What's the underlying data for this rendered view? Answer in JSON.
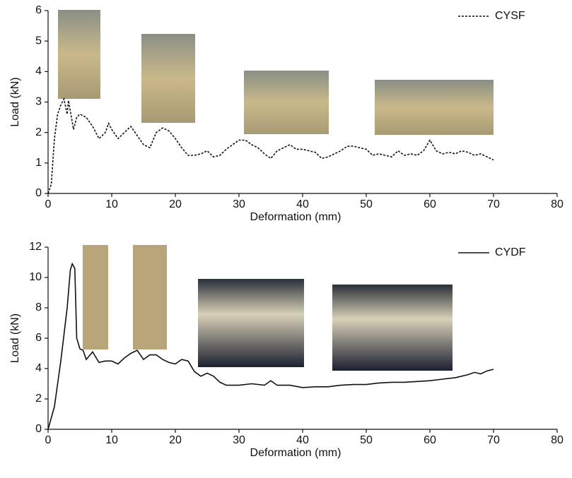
{
  "chart_data": [
    {
      "type": "line",
      "xlabel": "Deformation (mm)",
      "ylabel": "Load (kN)",
      "xlim": [
        0,
        80
      ],
      "ylim": [
        0,
        6
      ],
      "xticks": [
        0,
        10,
        20,
        30,
        40,
        50,
        60,
        70,
        80
      ],
      "yticks": [
        0,
        1,
        2,
        3,
        4,
        5,
        6
      ],
      "legend": "upper right",
      "x": [
        0,
        0.5,
        1,
        1.5,
        2,
        2.5,
        3,
        3.2,
        4,
        4.5,
        5,
        6,
        7,
        8,
        9,
        9.5,
        10,
        11,
        12,
        13,
        14,
        15,
        16,
        17,
        18,
        19,
        20,
        21,
        22,
        23,
        24,
        25,
        26,
        27,
        28,
        29,
        30,
        31,
        32,
        33,
        34,
        35,
        36,
        37,
        38,
        39,
        40,
        41,
        42,
        43,
        44,
        45,
        46,
        47,
        48,
        49,
        50,
        51,
        52,
        53,
        54,
        55,
        56,
        57,
        58,
        59,
        60,
        61,
        62,
        63,
        64,
        65,
        66,
        67,
        68,
        69,
        70
      ],
      "series": [
        {
          "name": "CYSF",
          "color": "#111111",
          "linestyle": "dashed",
          "values": [
            0,
            0.3,
            1.8,
            2.6,
            2.9,
            3.1,
            2.6,
            3.05,
            2.1,
            2.5,
            2.6,
            2.5,
            2.2,
            1.8,
            2.0,
            2.3,
            2.1,
            1.8,
            2.0,
            2.2,
            1.9,
            1.6,
            1.5,
            2.0,
            2.15,
            2.05,
            1.8,
            1.5,
            1.25,
            1.25,
            1.3,
            1.4,
            1.2,
            1.25,
            1.45,
            1.6,
            1.75,
            1.75,
            1.6,
            1.5,
            1.3,
            1.15,
            1.4,
            1.5,
            1.6,
            1.45,
            1.45,
            1.4,
            1.35,
            1.15,
            1.2,
            1.3,
            1.4,
            1.55,
            1.55,
            1.5,
            1.45,
            1.25,
            1.3,
            1.25,
            1.2,
            1.4,
            1.25,
            1.3,
            1.25,
            1.4,
            1.75,
            1.4,
            1.3,
            1.35,
            1.3,
            1.4,
            1.35,
            1.25,
            1.3,
            1.2,
            1.1
          ]
        }
      ]
    },
    {
      "type": "line",
      "xlabel": "Deformation (mm)",
      "ylabel": "Load (kN)",
      "xlim": [
        0,
        80
      ],
      "ylim": [
        0,
        12
      ],
      "xticks": [
        0,
        10,
        20,
        30,
        40,
        50,
        60,
        70,
        80
      ],
      "yticks": [
        0,
        2,
        4,
        6,
        8,
        10,
        12
      ],
      "legend": "upper right",
      "x": [
        0,
        1,
        2,
        3,
        3.5,
        3.8,
        4.2,
        4.5,
        5,
        5.5,
        6,
        7,
        8,
        9,
        10,
        11,
        12,
        13,
        14,
        15,
        16,
        17,
        18,
        19,
        20,
        21,
        22,
        23,
        24,
        25,
        26,
        27,
        28,
        30,
        32,
        34,
        35,
        36,
        38,
        40,
        42,
        44,
        46,
        48,
        50,
        52,
        54,
        56,
        58,
        60,
        62,
        64,
        66,
        67,
        68,
        69,
        70
      ],
      "series": [
        {
          "name": "CYDF",
          "color": "#111111",
          "linestyle": "solid",
          "values": [
            0,
            1.5,
            4.5,
            8,
            10.5,
            10.9,
            10.6,
            6,
            5.3,
            5.2,
            4.6,
            5.1,
            4.4,
            4.5,
            4.5,
            4.3,
            4.7,
            5.0,
            5.2,
            4.6,
            4.9,
            4.9,
            4.6,
            4.4,
            4.3,
            4.6,
            4.5,
            3.8,
            3.5,
            3.7,
            3.5,
            3.1,
            2.9,
            2.9,
            3.0,
            2.9,
            3.2,
            2.9,
            2.9,
            2.75,
            2.8,
            2.8,
            2.9,
            2.95,
            2.95,
            3.05,
            3.1,
            3.1,
            3.15,
            3.2,
            3.3,
            3.4,
            3.6,
            3.75,
            3.65,
            3.85,
            3.95
          ]
        }
      ]
    }
  ]
}
